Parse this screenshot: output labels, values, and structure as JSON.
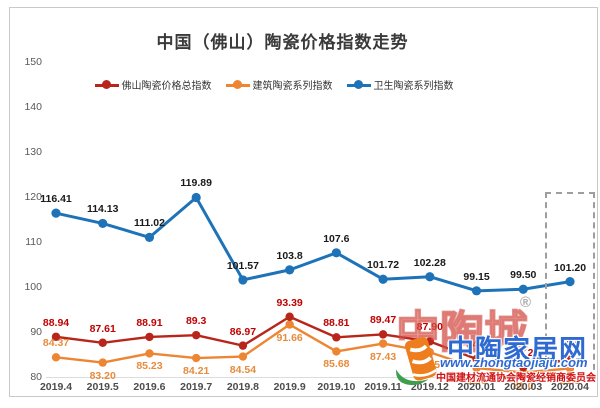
{
  "title": "中国（佛山）陶瓷价格指数走势",
  "chart_data": {
    "type": "line",
    "x": [
      "2019.4",
      "2019.5",
      "2019.6",
      "2019.7",
      "2019.8",
      "2019.9",
      "2019.10",
      "2019.11",
      "2019.12",
      "2020.01",
      "2020.03",
      "2020.04"
    ],
    "series": [
      {
        "key": "foshan-total-index",
        "name": "佛山陶瓷价格总指数",
        "color": "#b8251a",
        "label_color": "#c00000",
        "label_side": "above",
        "values": [
          88.94,
          87.61,
          88.91,
          89.3,
          86.97,
          93.39,
          88.81,
          89.47,
          87.9,
          84.0,
          82.2,
          83.9
        ],
        "labels": [
          "88.94",
          "87.61",
          "88.91",
          "89.3",
          "86.97",
          "93.39",
          "88.81",
          "89.47",
          "87.90",
          "84.0",
          "82.2",
          "83.9"
        ]
      },
      {
        "key": "building-ceramics-index",
        "name": "建筑陶瓷系列指数",
        "color": "#ed8633",
        "label_color": "#e78b3d",
        "label_side": "below",
        "label_side_overrides": {
          "0": "above"
        },
        "values": [
          84.37,
          83.2,
          85.23,
          84.21,
          84.54,
          91.66,
          85.68,
          87.43,
          85.5,
          82.0,
          81.0,
          81.9
        ],
        "labels": [
          "84.37",
          "83.20",
          "85.23",
          "84.21",
          "84.54",
          "91.66",
          "85.68",
          "87.43",
          "85.5",
          "82.0",
          "81.0",
          "81.9"
        ]
      },
      {
        "key": "sanitary-ceramics-index",
        "name": "卫生陶瓷系列指数",
        "color": "#1e73b8",
        "label_color": "#1a1a1a",
        "label_side": "above",
        "values": [
          116.41,
          114.13,
          111.02,
          119.89,
          101.57,
          103.8,
          107.6,
          101.72,
          102.28,
          99.15,
          99.5,
          101.2
        ],
        "labels": [
          "116.41",
          "114.13",
          "111.02",
          "119.89",
          "101.57",
          "103.8",
          "107.6",
          "101.72",
          "102.28",
          "99.15",
          "99.50",
          "101.20"
        ]
      }
    ],
    "ylim": [
      80,
      150
    ],
    "yticks": [
      150,
      140,
      130,
      120,
      110,
      100,
      90,
      80
    ],
    "grid": false,
    "legend_position": "top-center",
    "highlight": {
      "category": "2020.04",
      "style": "dashed-box"
    }
  },
  "watermark": {
    "logo_text": "中陶城",
    "registered": "®",
    "site_name": "中陶家居网",
    "site_url": "www.zhongtaojiaju.com",
    "org": "中国建材流通协会陶瓷经销商委员会"
  }
}
